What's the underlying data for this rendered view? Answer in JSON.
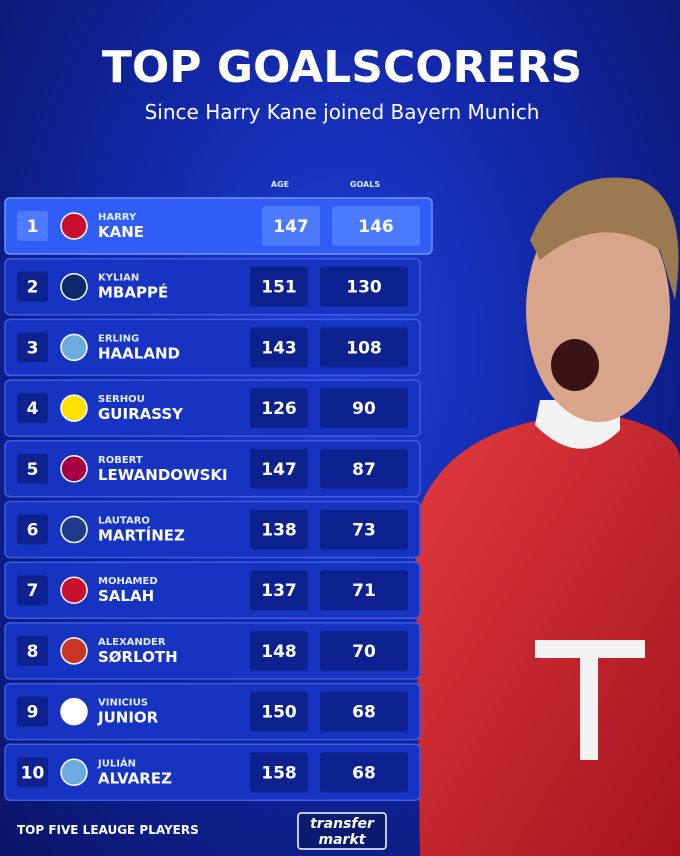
{
  "header": {
    "title": "TOP GOALSCORERS",
    "subtitle": "Since Harry Kane joined Bayern Munich"
  },
  "table": {
    "columns": [
      "AGE",
      "GOALS"
    ],
    "rows": [
      [
        "1",
        "HARRY",
        "KANE",
        "147",
        "146"
      ],
      [
        "2",
        "KYLIAN",
        "MBAPPÉ",
        "151",
        "130"
      ],
      [
        "3",
        "ERLING",
        "HAALAND",
        "143",
        "108"
      ],
      [
        "4",
        "SERHOU",
        "GUIRASSY",
        "126",
        "90"
      ],
      [
        "5",
        "ROBERT",
        "LEWANDOWSKI",
        "147",
        "87"
      ],
      [
        "6",
        "LAUTARO",
        "MARTÍNEZ",
        "138",
        "73"
      ],
      [
        "7",
        "MOHAMED",
        "SALAH",
        "137",
        "71"
      ],
      [
        "8",
        "ALEXANDER",
        "SØRLOTH",
        "148",
        "70"
      ],
      [
        "9",
        "VINICIUS",
        "JUNIOR",
        "150",
        "68"
      ],
      [
        "10",
        "JULIÁN",
        "ALVAREZ",
        "158",
        "68"
      ]
    ]
  },
  "footer": {
    "note": "TOP FIVE LEAUGE PLAYERS",
    "brand": [
      "transfer",
      "markt"
    ]
  }
}
